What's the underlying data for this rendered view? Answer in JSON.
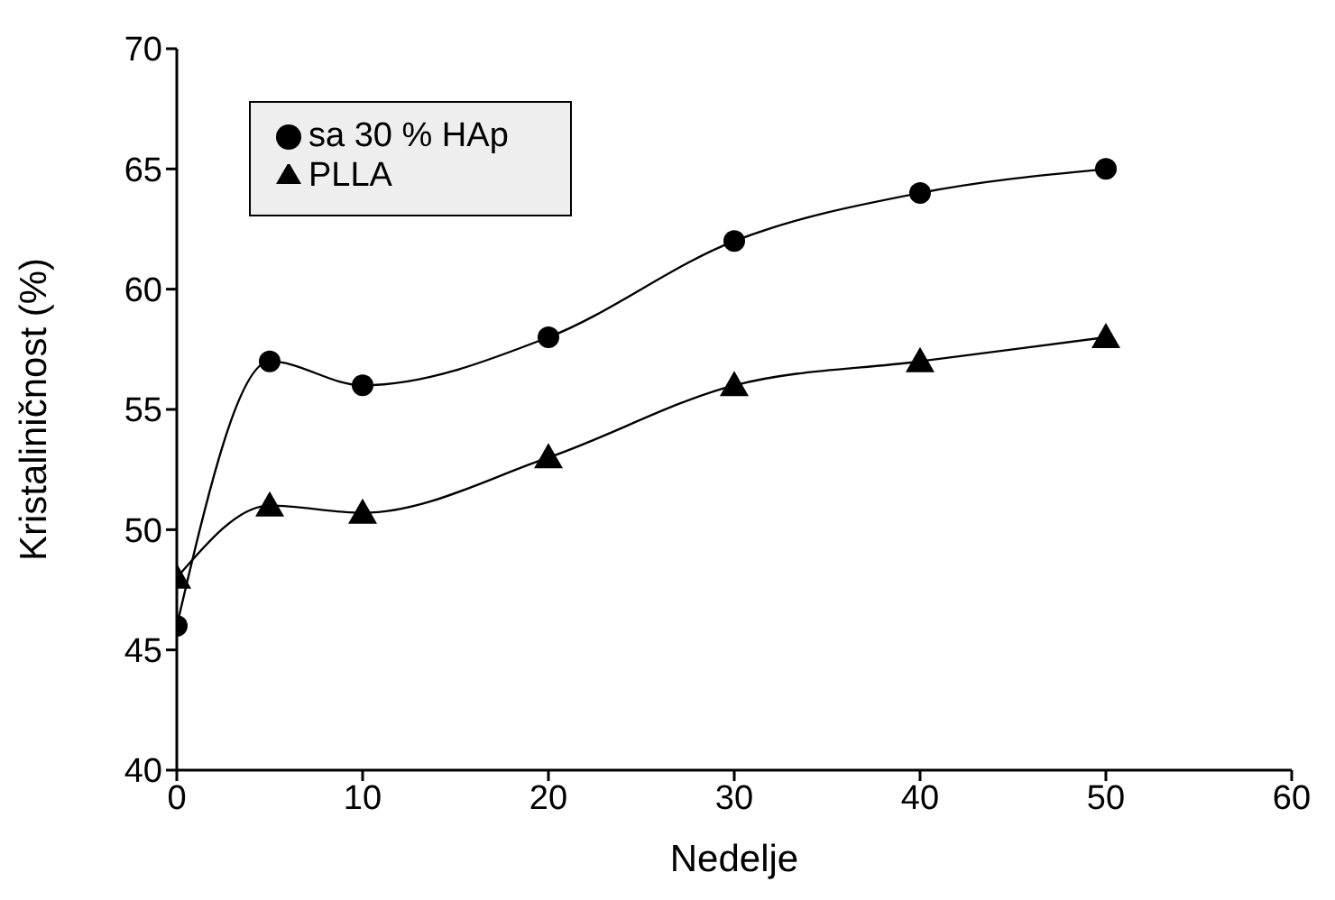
{
  "chart_data": {
    "type": "line",
    "xlabel": "Nedelje",
    "ylabel": "Kristaliničnost (%)",
    "x": [
      0,
      5,
      10,
      20,
      30,
      40,
      50
    ],
    "series": [
      {
        "name": "sa 30 % HAp",
        "color": "#000000",
        "marker": "circle",
        "values": [
          46,
          57,
          56,
          58,
          62,
          64,
          65
        ]
      },
      {
        "name": "PLLA",
        "color": "#000000",
        "marker": "triangle",
        "values": [
          48,
          51,
          50.7,
          53,
          56,
          57,
          58
        ]
      }
    ],
    "xlim": [
      0,
      60
    ],
    "xticks": [
      0,
      10,
      20,
      30,
      40,
      50,
      60
    ],
    "ylim": [
      40,
      70
    ],
    "yticks": [
      40,
      45,
      50,
      55,
      60,
      65,
      70
    ],
    "grid": false,
    "legend": "top left",
    "line_style": "solid"
  }
}
